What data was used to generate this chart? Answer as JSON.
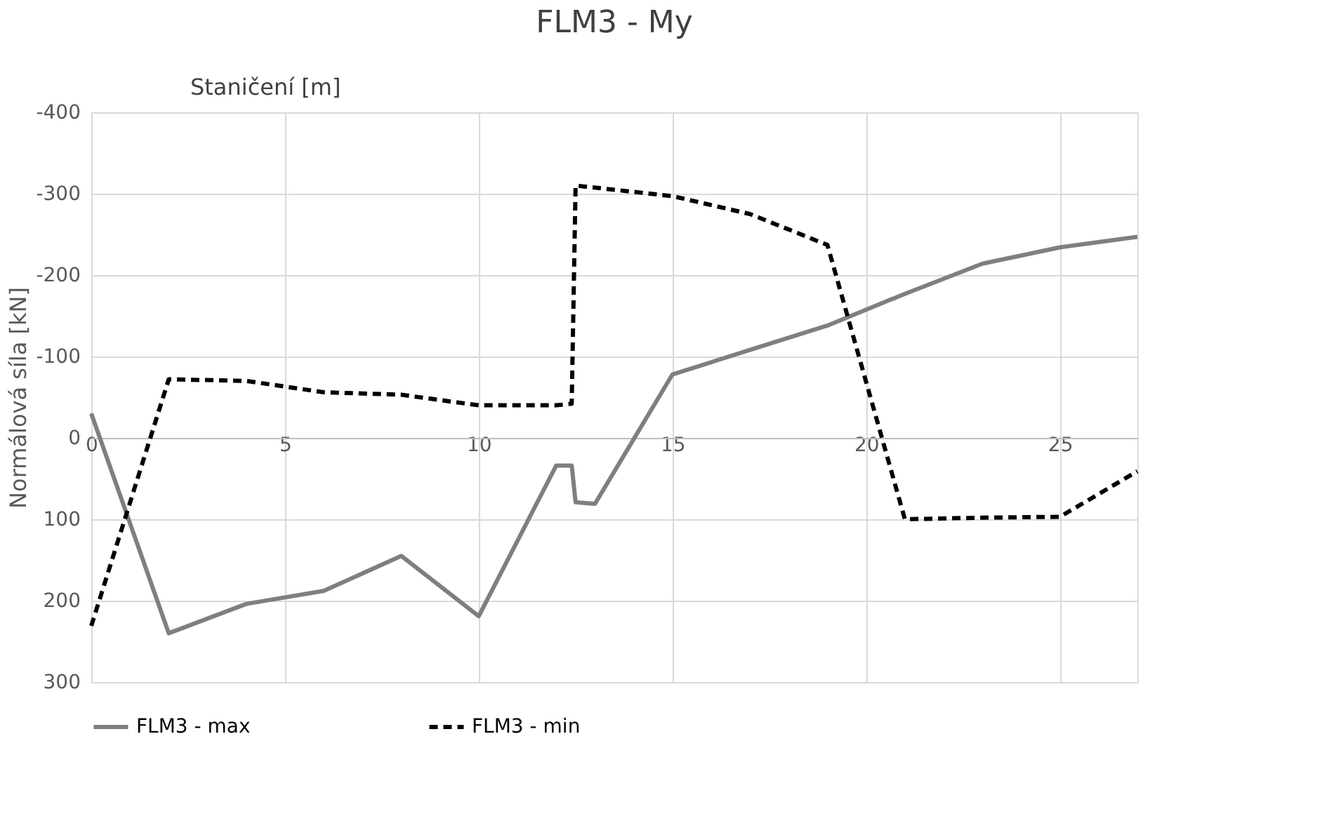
{
  "chart_data": {
    "type": "line",
    "title": "FLM3 - My",
    "xlabel": "Staničení [m]",
    "ylabel": "Normálová síla [kN]",
    "xlim": [
      0,
      27
    ],
    "xticks": [
      0,
      5,
      10,
      15,
      20,
      25
    ],
    "ylim": [
      300,
      -400
    ],
    "yticks": [
      -400,
      -300,
      -200,
      -100,
      0,
      100,
      200,
      300
    ],
    "grid": true,
    "legend": "bottom",
    "series": [
      {
        "name": "FLM3 - max",
        "color": "#7f7f7f",
        "line_style": "solid",
        "x": [
          0,
          2,
          4,
          6,
          8,
          10,
          12,
          12.4,
          12.5,
          13,
          15,
          17,
          19,
          21,
          23,
          25,
          27
        ],
        "values": [
          -30,
          240,
          204,
          188,
          145,
          219,
          34,
          34,
          79,
          81,
          -78,
          -108,
          -138,
          -177,
          -214,
          -234,
          -247
        ]
      },
      {
        "name": "FLM3 - min",
        "color": "#000000",
        "line_style": "dashed",
        "x": [
          0,
          2,
          4,
          6,
          8,
          10,
          12,
          12.4,
          12.5,
          15,
          17,
          19,
          21,
          23,
          25,
          27
        ],
        "values": [
          231,
          -72,
          -70,
          -56,
          -53,
          -40,
          -40,
          -42,
          -310,
          -297,
          -275,
          -237,
          100,
          98,
          97,
          41
        ]
      }
    ]
  }
}
